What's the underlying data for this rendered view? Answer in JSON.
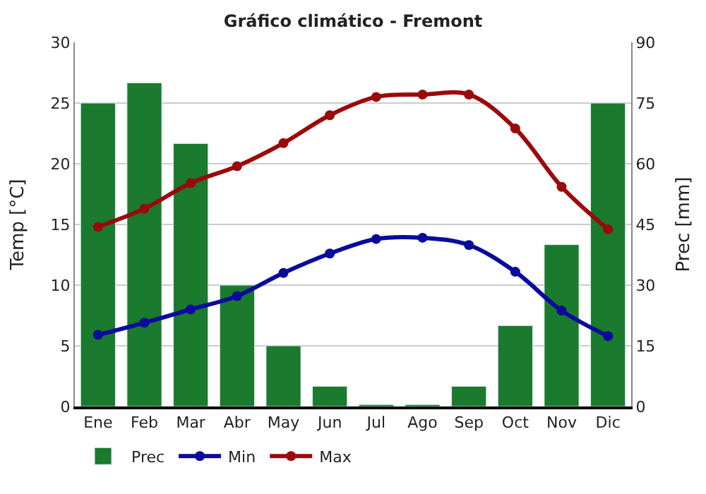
{
  "chart_data": {
    "type": "line",
    "title": "Gráfico climático - Fremont",
    "ylabel": "Temp [°C]",
    "y2label": "Prec [mm]",
    "categories": [
      "Ene",
      "Feb",
      "Mar",
      "Abr",
      "May",
      "Jun",
      "Jul",
      "Ago",
      "Sep",
      "Oct",
      "Nov",
      "Dic"
    ],
    "series": [
      {
        "name": "Prec",
        "type": "bar",
        "axis": "y2",
        "color": "#1a7a2e",
        "values": [
          75,
          80,
          65,
          30,
          15,
          5,
          0.5,
          0.5,
          5,
          20,
          40,
          75
        ]
      },
      {
        "name": "Min",
        "color": "#0a0a9c",
        "values": [
          5.9,
          6.9,
          8.0,
          9.1,
          11.0,
          12.6,
          13.8,
          13.9,
          13.3,
          11.1,
          7.9,
          5.8
        ]
      },
      {
        "name": "Max",
        "color": "#9b0a0a",
        "values": [
          14.8,
          16.3,
          18.4,
          19.8,
          21.7,
          24.0,
          25.5,
          25.7,
          25.7,
          22.9,
          18.1,
          14.6
        ]
      }
    ],
    "ylim": [
      0,
      30
    ],
    "yticks": [
      0,
      5,
      10,
      15,
      20,
      25,
      30
    ],
    "y2lim": [
      0,
      90
    ],
    "y2ticks": [
      0,
      15,
      30,
      45,
      60,
      75,
      90
    ],
    "grid": "y",
    "legend": "bottom",
    "marker": "circle",
    "line_style": "solid"
  }
}
